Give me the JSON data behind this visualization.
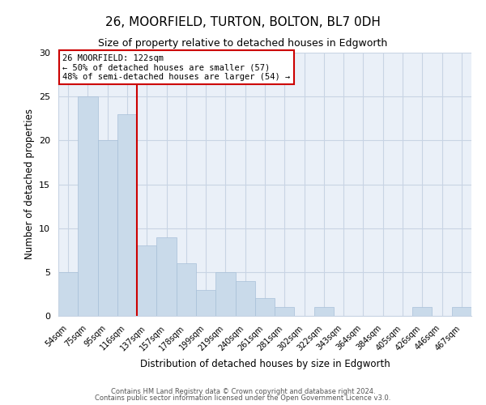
{
  "title": "26, MOORFIELD, TURTON, BOLTON, BL7 0DH",
  "subtitle": "Size of property relative to detached houses in Edgworth",
  "xlabel": "Distribution of detached houses by size in Edgworth",
  "ylabel": "Number of detached properties",
  "categories": [
    "54sqm",
    "75sqm",
    "95sqm",
    "116sqm",
    "137sqm",
    "157sqm",
    "178sqm",
    "199sqm",
    "219sqm",
    "240sqm",
    "261sqm",
    "281sqm",
    "302sqm",
    "322sqm",
    "343sqm",
    "364sqm",
    "384sqm",
    "405sqm",
    "426sqm",
    "446sqm",
    "467sqm"
  ],
  "values": [
    5,
    25,
    20,
    23,
    8,
    9,
    6,
    3,
    5,
    4,
    2,
    1,
    0,
    1,
    0,
    0,
    0,
    0,
    1,
    0,
    1
  ],
  "bar_color": "#c9daea",
  "bar_edge_color": "#a8c0d8",
  "vline_x_index": 3,
  "vline_color": "#cc0000",
  "annotation_line1": "26 MOORFIELD: 122sqm",
  "annotation_line2": "← 50% of detached houses are smaller (57)",
  "annotation_line3": "48% of semi-detached houses are larger (54) →",
  "ylim": [
    0,
    30
  ],
  "yticks": [
    0,
    5,
    10,
    15,
    20,
    25,
    30
  ],
  "footer1": "Contains HM Land Registry data © Crown copyright and database right 2024.",
  "footer2": "Contains public sector information licensed under the Open Government Licence v3.0.",
  "background_color": "#ffffff",
  "plot_bg_color": "#eaf0f8",
  "grid_color": "#c8d4e4"
}
